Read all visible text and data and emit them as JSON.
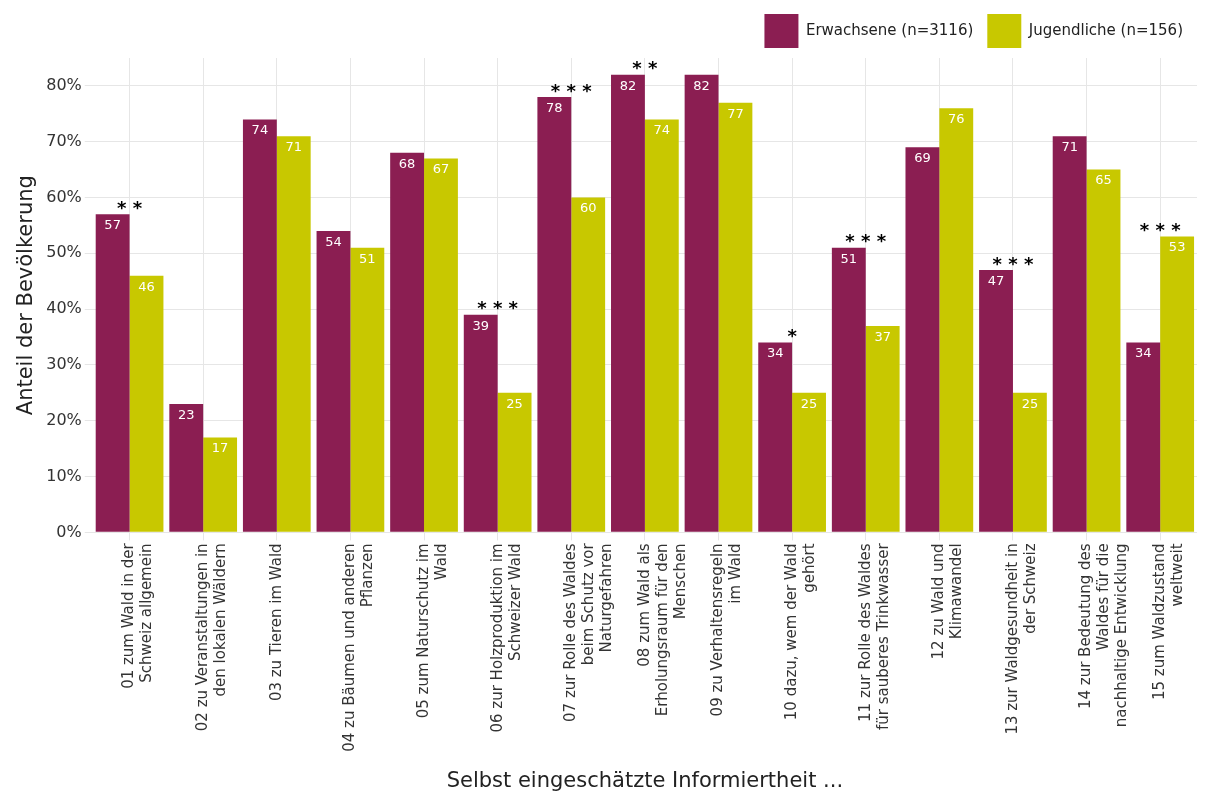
{
  "chart_data": {
    "type": "bar",
    "xlabel": "Selbst eingeschätzte Informiertheit ...",
    "ylabel": "Anteil der Bevölkerung",
    "categories": [
      "01 zum Wald in der Schweiz allgemein",
      "02 zu Veranstaltungen in den lokalen Wäldern",
      "03 zu Tieren im Wald",
      "04 zu Bäumen und anderen Pflanzen",
      "05 zum Naturschutz im Wald",
      "06 zur Holzproduktion im Schweizer Wald",
      "07 zur Rolle des Waldes beim Schutz vor Naturgefahren",
      "08 zum Wald als Erholungsraum für den Menschen",
      "09 zu Verhaltensregeln im Wald",
      "10 dazu, wem der Wald gehört",
      "11 zur Rolle des Waldes für sauberes Trinkwasser",
      "12 zu Wald und Klimawandel",
      "13 zur Waldgesundheit in der Schweiz",
      "14 zur Bedeutung des Waldes für die nachhaltige Entwicklung",
      "15 zum Waldzustand weltweit"
    ],
    "series": [
      {
        "name": "Erwachsene (n=3116)",
        "color": "#8b1e52",
        "values": [
          57,
          23,
          74,
          54,
          68,
          39,
          78,
          82,
          82,
          34,
          51,
          69,
          47,
          71,
          34
        ]
      },
      {
        "name": "Jugendliche (n=156)",
        "color": "#c8c800",
        "values": [
          46,
          17,
          71,
          51,
          67,
          25,
          60,
          74,
          77,
          25,
          37,
          76,
          25,
          65,
          53
        ]
      }
    ],
    "ylim": [
      0,
      85
    ],
    "yticks": [
      {
        "value": 0,
        "label": "0%"
      },
      {
        "value": 10,
        "label": "10%"
      },
      {
        "value": 20,
        "label": "20%"
      },
      {
        "value": 30,
        "label": "30%"
      },
      {
        "value": 40,
        "label": "40%"
      },
      {
        "value": 50,
        "label": "50%"
      },
      {
        "value": 60,
        "label": "60%"
      },
      {
        "value": 70,
        "label": "70%"
      },
      {
        "value": 80,
        "label": "80%"
      }
    ],
    "grid": true,
    "legend": "top right",
    "data_labels": true,
    "annotations": [
      "* *",
      "* * *",
      "* * *",
      "* *",
      "*",
      "* * *",
      "* * *",
      "* * *"
    ]
  }
}
